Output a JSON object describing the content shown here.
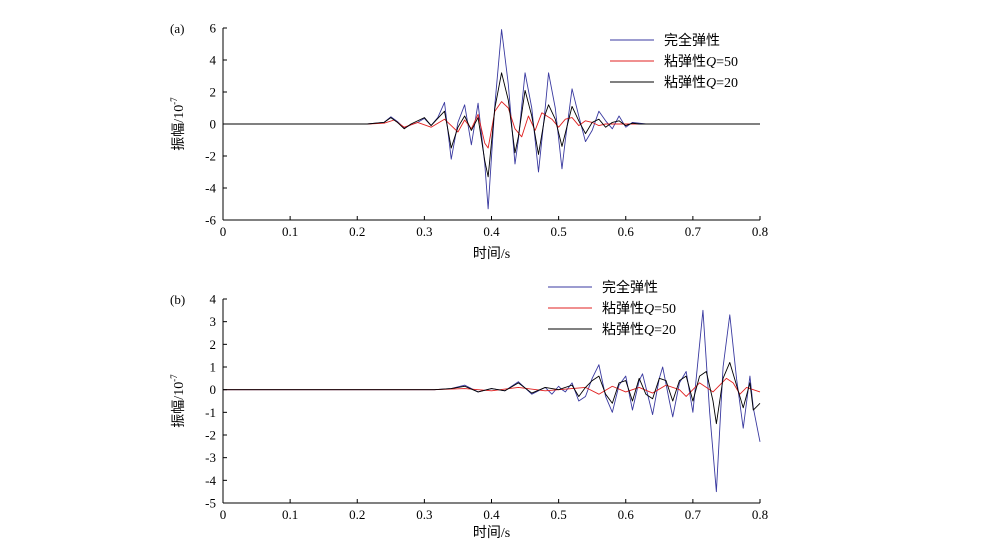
{
  "chart_data": [
    {
      "type": "line",
      "panel_label": "(a)",
      "xlabel": "时间/s",
      "ylabel": "振幅/10",
      "ylabel_exp": "-7",
      "xlim": [
        0,
        0.8
      ],
      "ylim": [
        -6,
        6
      ],
      "xticks": [
        "0",
        "0.1",
        "0.2",
        "0.3",
        "0.4",
        "0.5",
        "0.6",
        "0.7",
        "0.8"
      ],
      "yticks": [
        "-6",
        "-4",
        "-2",
        "0",
        "2",
        "4",
        "6"
      ],
      "legend_position": "top-right",
      "series": [
        {
          "name": "完全弹性",
          "legend_prefix": "完全弹性",
          "legend_q": "",
          "legend_suffix": "",
          "color": "#3a3aa0",
          "points": [
            [
              0,
              0
            ],
            [
              0.215,
              0
            ],
            [
              0.24,
              0.1
            ],
            [
              0.25,
              0.45
            ],
            [
              0.26,
              0.15
            ],
            [
              0.27,
              -0.25
            ],
            [
              0.28,
              -0.05
            ],
            [
              0.29,
              0.1
            ],
            [
              0.3,
              0.35
            ],
            [
              0.31,
              -0.1
            ],
            [
              0.32,
              0.4
            ],
            [
              0.33,
              1.35
            ],
            [
              0.34,
              -2.2
            ],
            [
              0.35,
              0.1
            ],
            [
              0.36,
              1.2
            ],
            [
              0.37,
              -1.3
            ],
            [
              0.38,
              1.3
            ],
            [
              0.39,
              -2.5
            ],
            [
              0.395,
              -5.3
            ],
            [
              0.405,
              1.2
            ],
            [
              0.415,
              5.9
            ],
            [
              0.425,
              2.5
            ],
            [
              0.435,
              -2.5
            ],
            [
              0.44,
              -1.0
            ],
            [
              0.45,
              3.2
            ],
            [
              0.46,
              1.0
            ],
            [
              0.47,
              -3.0
            ],
            [
              0.48,
              1.0
            ],
            [
              0.485,
              3.2
            ],
            [
              0.495,
              1.0
            ],
            [
              0.505,
              -2.8
            ],
            [
              0.51,
              -1.0
            ],
            [
              0.52,
              2.2
            ],
            [
              0.53,
              0.5
            ],
            [
              0.54,
              -1.1
            ],
            [
              0.55,
              -0.4
            ],
            [
              0.56,
              0.8
            ],
            [
              0.57,
              0.2
            ],
            [
              0.58,
              -0.3
            ],
            [
              0.59,
              0.5
            ],
            [
              0.6,
              -0.2
            ],
            [
              0.61,
              0.1
            ],
            [
              0.62,
              0.05
            ],
            [
              0.63,
              0
            ],
            [
              0.8,
              0
            ]
          ]
        },
        {
          "name": "粘弹性Q=50",
          "legend_prefix": "粘弹性",
          "legend_q": "Q",
          "legend_suffix": "=50",
          "color": "#e02020",
          "points": [
            [
              0,
              0
            ],
            [
              0.215,
              0
            ],
            [
              0.24,
              0.05
            ],
            [
              0.255,
              0.25
            ],
            [
              0.27,
              -0.2
            ],
            [
              0.29,
              0.1
            ],
            [
              0.31,
              -0.2
            ],
            [
              0.33,
              0.3
            ],
            [
              0.35,
              -0.5
            ],
            [
              0.36,
              0.25
            ],
            [
              0.37,
              -0.3
            ],
            [
              0.38,
              0.6
            ],
            [
              0.39,
              -1.2
            ],
            [
              0.395,
              -1.5
            ],
            [
              0.405,
              0.8
            ],
            [
              0.415,
              1.4
            ],
            [
              0.425,
              1.0
            ],
            [
              0.435,
              -0.3
            ],
            [
              0.445,
              -0.8
            ],
            [
              0.455,
              0.5
            ],
            [
              0.465,
              -0.4
            ],
            [
              0.475,
              0.7
            ],
            [
              0.49,
              0.3
            ],
            [
              0.5,
              -0.2
            ],
            [
              0.51,
              0.3
            ],
            [
              0.52,
              0.4
            ],
            [
              0.53,
              -0.1
            ],
            [
              0.54,
              0.2
            ],
            [
              0.55,
              0.1
            ],
            [
              0.56,
              -0.1
            ],
            [
              0.57,
              0
            ],
            [
              0.8,
              0
            ]
          ]
        },
        {
          "name": "粘弹性Q=20",
          "legend_prefix": "粘弹性",
          "legend_q": "Q",
          "legend_suffix": "=20",
          "color": "#000000",
          "points": [
            [
              0,
              0
            ],
            [
              0.215,
              0
            ],
            [
              0.24,
              0.1
            ],
            [
              0.25,
              0.4
            ],
            [
              0.26,
              0.1
            ],
            [
              0.27,
              -0.3
            ],
            [
              0.28,
              0
            ],
            [
              0.3,
              0.4
            ],
            [
              0.31,
              -0.1
            ],
            [
              0.33,
              0.8
            ],
            [
              0.34,
              -1.5
            ],
            [
              0.35,
              -0.2
            ],
            [
              0.36,
              0.5
            ],
            [
              0.37,
              -0.4
            ],
            [
              0.38,
              0.4
            ],
            [
              0.39,
              -2.3
            ],
            [
              0.395,
              -3.3
            ],
            [
              0.405,
              1.0
            ],
            [
              0.415,
              3.2
            ],
            [
              0.425,
              1.5
            ],
            [
              0.435,
              -1.8
            ],
            [
              0.44,
              -0.8
            ],
            [
              0.45,
              2.1
            ],
            [
              0.46,
              0.5
            ],
            [
              0.47,
              -1.9
            ],
            [
              0.48,
              0.6
            ],
            [
              0.485,
              1.2
            ],
            [
              0.495,
              0.3
            ],
            [
              0.505,
              -1.4
            ],
            [
              0.52,
              1.1
            ],
            [
              0.53,
              0.2
            ],
            [
              0.54,
              -0.6
            ],
            [
              0.55,
              0.1
            ],
            [
              0.56,
              0.3
            ],
            [
              0.57,
              -0.2
            ],
            [
              0.58,
              0.1
            ],
            [
              0.59,
              0.2
            ],
            [
              0.6,
              -0.1
            ],
            [
              0.61,
              0.05
            ],
            [
              0.62,
              0
            ],
            [
              0.8,
              0
            ]
          ]
        }
      ]
    },
    {
      "type": "line",
      "panel_label": "(b)",
      "xlabel": "时间/s",
      "ylabel": "振幅/10",
      "ylabel_exp": "-7",
      "xlim": [
        0,
        0.8
      ],
      "ylim": [
        -5,
        4
      ],
      "xticks": [
        "0",
        "0.1",
        "0.2",
        "0.3",
        "0.4",
        "0.5",
        "0.6",
        "0.7",
        "0.8"
      ],
      "yticks": [
        "-5",
        "-4",
        "-3",
        "-2",
        "-1",
        "0",
        "1",
        "2",
        "3",
        "4"
      ],
      "legend_position": "top-right",
      "series": [
        {
          "name": "完全弹性",
          "legend_prefix": "完全弹性",
          "legend_q": "",
          "legend_suffix": "",
          "color": "#3a3aa0",
          "points": [
            [
              0,
              0
            ],
            [
              0.315,
              0
            ],
            [
              0.34,
              0.05
            ],
            [
              0.36,
              0.2
            ],
            [
              0.38,
              -0.1
            ],
            [
              0.4,
              0.05
            ],
            [
              0.42,
              -0.05
            ],
            [
              0.44,
              0.35
            ],
            [
              0.46,
              -0.2
            ],
            [
              0.48,
              0.1
            ],
            [
              0.49,
              -0.2
            ],
            [
              0.5,
              0.15
            ],
            [
              0.505,
              0
            ],
            [
              0.51,
              -0.1
            ],
            [
              0.52,
              0.3
            ],
            [
              0.53,
              -0.5
            ],
            [
              0.54,
              -0.3
            ],
            [
              0.55,
              0.5
            ],
            [
              0.56,
              1.1
            ],
            [
              0.57,
              -0.3
            ],
            [
              0.58,
              -1.0
            ],
            [
              0.59,
              0.2
            ],
            [
              0.6,
              0.6
            ],
            [
              0.61,
              -0.9
            ],
            [
              0.62,
              0.4
            ],
            [
              0.625,
              0.7
            ],
            [
              0.63,
              0.1
            ],
            [
              0.64,
              -1.1
            ],
            [
              0.65,
              0.5
            ],
            [
              0.655,
              1.0
            ],
            [
              0.665,
              -0.5
            ],
            [
              0.67,
              -1.2
            ],
            [
              0.68,
              0.3
            ],
            [
              0.69,
              0.8
            ],
            [
              0.7,
              -1.0
            ],
            [
              0.71,
              2.0
            ],
            [
              0.715,
              3.5
            ],
            [
              0.725,
              -1.0
            ],
            [
              0.735,
              -4.5
            ],
            [
              0.745,
              1.0
            ],
            [
              0.755,
              3.3
            ],
            [
              0.765,
              0.5
            ],
            [
              0.775,
              -1.7
            ],
            [
              0.785,
              0.6
            ],
            [
              0.79,
              -0.8
            ],
            [
              0.8,
              -2.3
            ]
          ]
        },
        {
          "name": "粘弹性Q=50",
          "legend_prefix": "粘弹性",
          "legend_q": "Q",
          "legend_suffix": "=50",
          "color": "#e02020",
          "points": [
            [
              0,
              0
            ],
            [
              0.315,
              0
            ],
            [
              0.36,
              0.05
            ],
            [
              0.4,
              -0.05
            ],
            [
              0.44,
              0.1
            ],
            [
              0.48,
              -0.05
            ],
            [
              0.5,
              0
            ],
            [
              0.52,
              0.05
            ],
            [
              0.54,
              0.1
            ],
            [
              0.56,
              -0.2
            ],
            [
              0.58,
              0.15
            ],
            [
              0.6,
              -0.1
            ],
            [
              0.62,
              0.1
            ],
            [
              0.64,
              -0.15
            ],
            [
              0.66,
              0.2
            ],
            [
              0.68,
              0
            ],
            [
              0.69,
              -0.3
            ],
            [
              0.71,
              0.3
            ],
            [
              0.73,
              -0.1
            ],
            [
              0.75,
              0.5
            ],
            [
              0.76,
              0.3
            ],
            [
              0.77,
              -0.2
            ],
            [
              0.78,
              0.1
            ],
            [
              0.8,
              -0.1
            ]
          ]
        },
        {
          "name": "粘弹性Q=20",
          "legend_prefix": "粘弹性",
          "legend_q": "Q",
          "legend_suffix": "=20",
          "color": "#000000",
          "points": [
            [
              0,
              0
            ],
            [
              0.315,
              0
            ],
            [
              0.34,
              0.05
            ],
            [
              0.36,
              0.15
            ],
            [
              0.38,
              -0.1
            ],
            [
              0.4,
              0.05
            ],
            [
              0.42,
              -0.05
            ],
            [
              0.44,
              0.3
            ],
            [
              0.46,
              -0.15
            ],
            [
              0.48,
              0.1
            ],
            [
              0.5,
              0
            ],
            [
              0.52,
              0.2
            ],
            [
              0.53,
              -0.3
            ],
            [
              0.54,
              0.1
            ],
            [
              0.55,
              0.4
            ],
            [
              0.56,
              0.6
            ],
            [
              0.57,
              -0.2
            ],
            [
              0.58,
              -0.6
            ],
            [
              0.59,
              0.3
            ],
            [
              0.6,
              0.4
            ],
            [
              0.61,
              -0.5
            ],
            [
              0.62,
              0.5
            ],
            [
              0.63,
              -0.2
            ],
            [
              0.64,
              -0.4
            ],
            [
              0.65,
              0.5
            ],
            [
              0.66,
              0.4
            ],
            [
              0.67,
              -0.5
            ],
            [
              0.68,
              0.4
            ],
            [
              0.69,
              0.6
            ],
            [
              0.7,
              -0.5
            ],
            [
              0.71,
              0.6
            ],
            [
              0.72,
              0.8
            ],
            [
              0.73,
              -0.5
            ],
            [
              0.735,
              -1.5
            ],
            [
              0.745,
              0.5
            ],
            [
              0.755,
              1.2
            ],
            [
              0.765,
              0.2
            ],
            [
              0.775,
              -0.8
            ],
            [
              0.785,
              0.3
            ],
            [
              0.79,
              -0.9
            ],
            [
              0.8,
              -0.6
            ]
          ]
        }
      ]
    }
  ]
}
